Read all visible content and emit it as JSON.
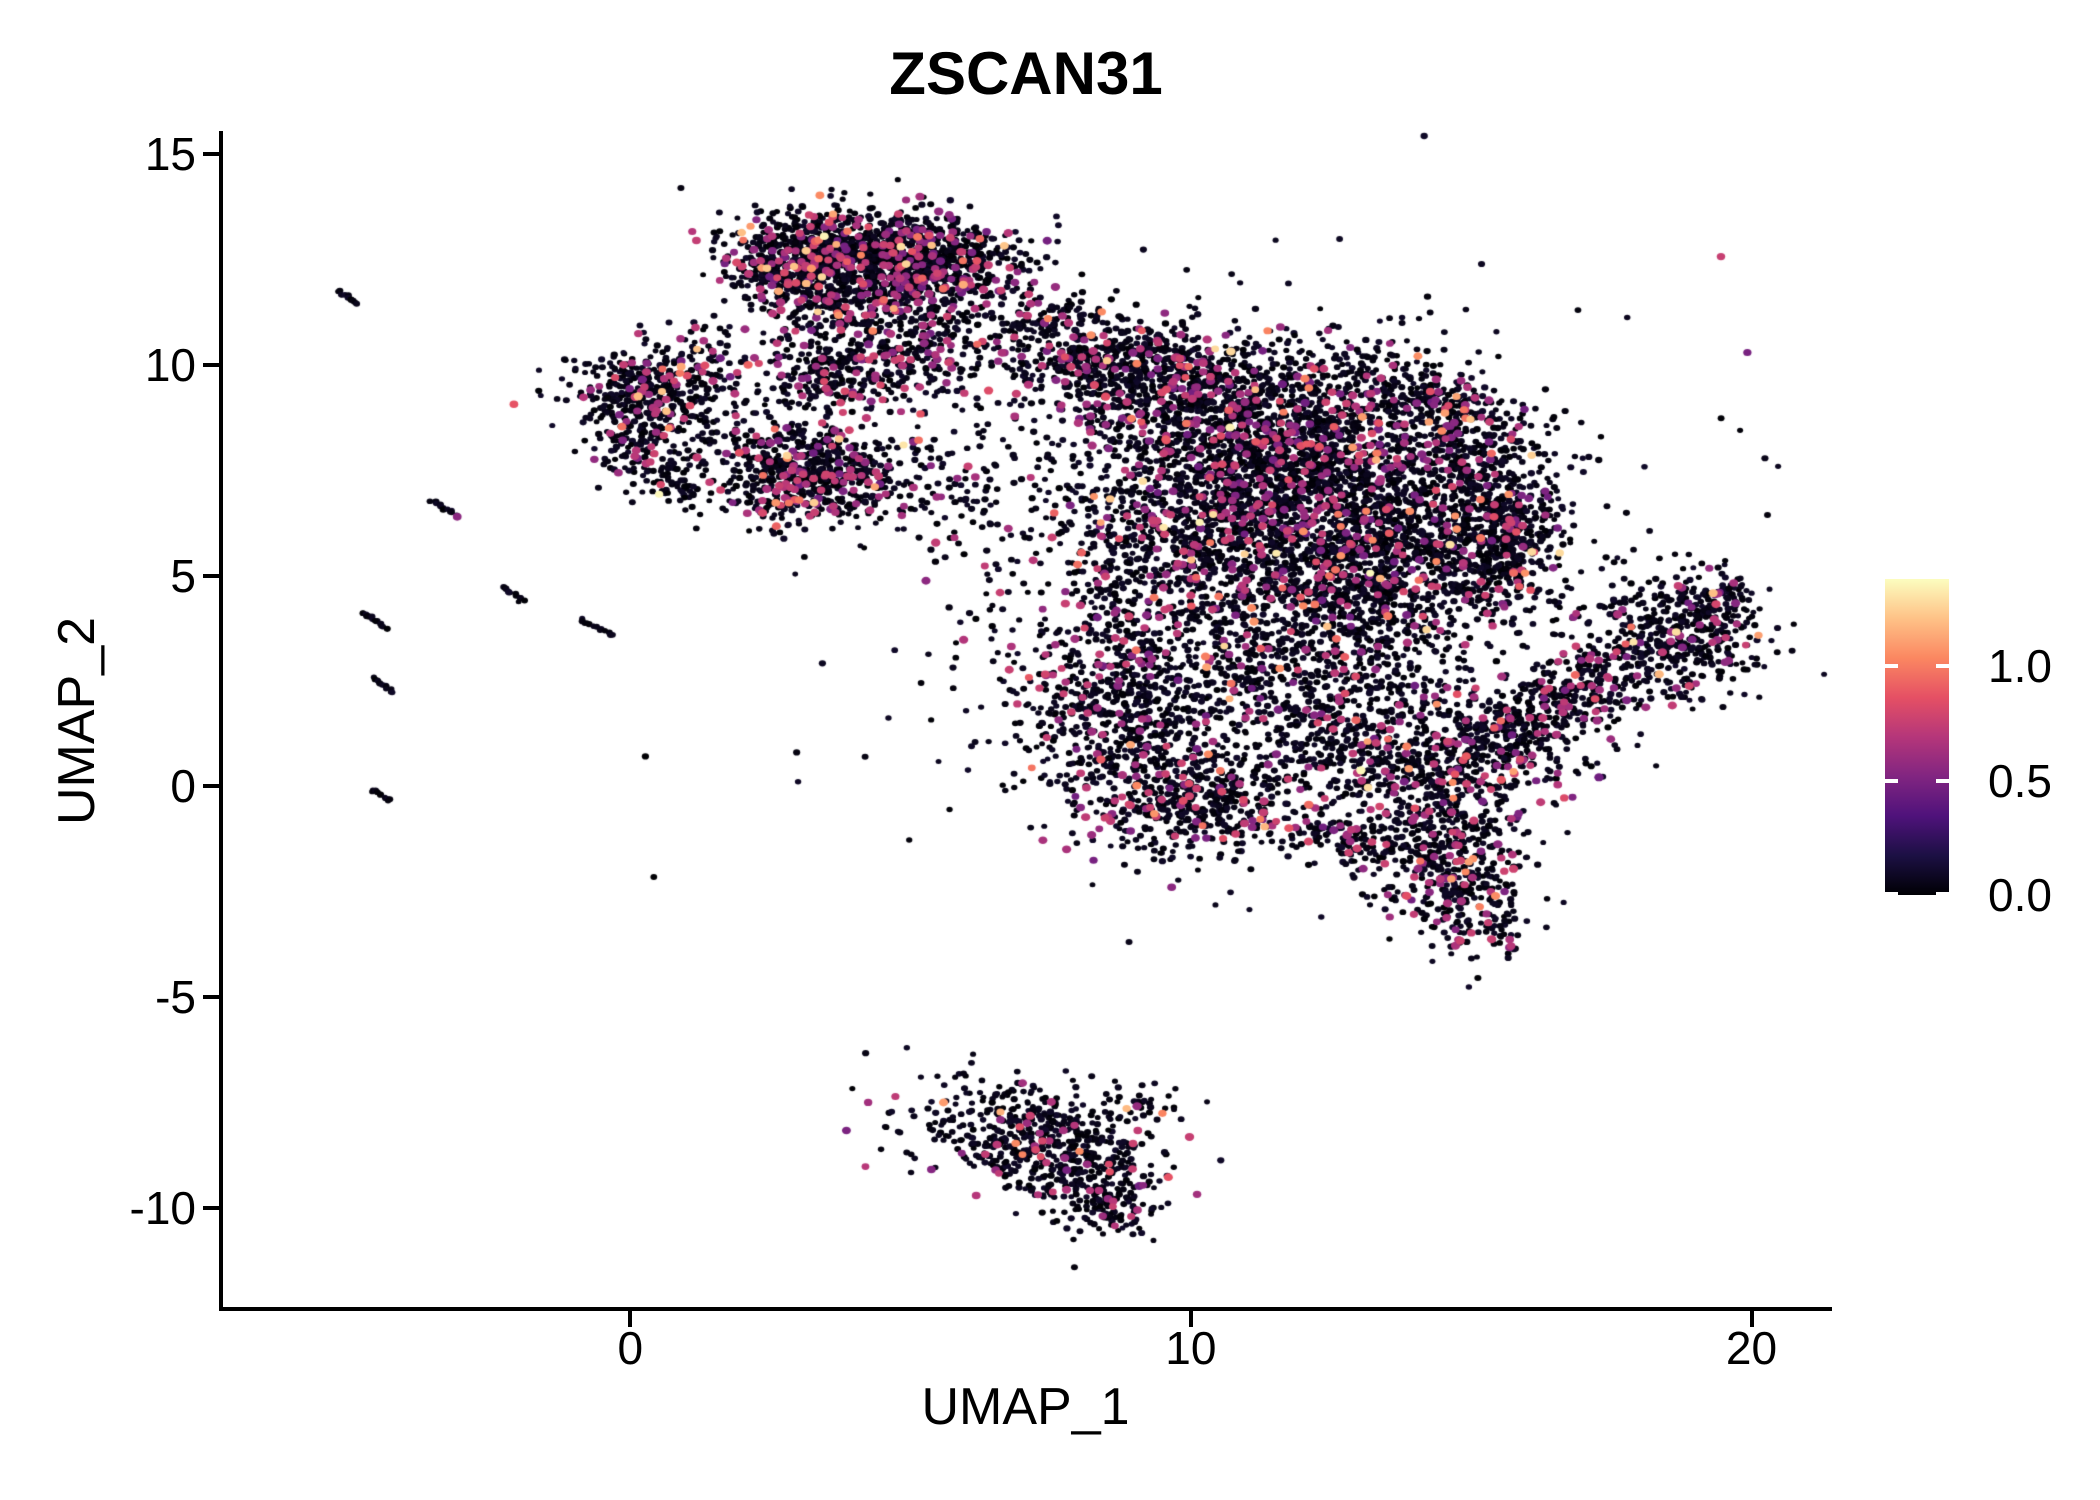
{
  "chart_data": {
    "type": "scatter",
    "title": "ZSCAN31",
    "xlabel": "UMAP_1",
    "ylabel": "UMAP_2",
    "x_range": [
      -7.3,
      21.4
    ],
    "y_range": [
      -12.4,
      15.5
    ],
    "grid": false,
    "x_ticks": [
      {
        "v": 0,
        "label": "0"
      },
      {
        "v": 10,
        "label": "10"
      },
      {
        "v": 20,
        "label": "20"
      }
    ],
    "y_ticks": [
      {
        "v": 15,
        "label": "15"
      },
      {
        "v": 10,
        "label": "10"
      },
      {
        "v": 5,
        "label": "5"
      },
      {
        "v": 0,
        "label": "0"
      },
      {
        "v": -5,
        "label": "-5"
      },
      {
        "v": -10,
        "label": "-10"
      }
    ],
    "legend_position": "right",
    "colorbar": {
      "min": 0,
      "max": 1.38,
      "ticks": [
        {
          "v": 1.0,
          "label": "1.0"
        },
        {
          "v": 0.5,
          "label": "0.5"
        },
        {
          "v": 0.0,
          "label": "0.0"
        }
      ]
    },
    "colormap": {
      "name": "magma",
      "stops": [
        [
          0,
          "#000004"
        ],
        [
          0.125,
          "#1c1044"
        ],
        [
          0.25,
          "#4f127b"
        ],
        [
          0.375,
          "#812581"
        ],
        [
          0.5,
          "#b5367a"
        ],
        [
          0.625,
          "#e55064"
        ],
        [
          0.75,
          "#fb8761"
        ],
        [
          0.875,
          "#fec287"
        ],
        [
          1,
          "#fcfdbf"
        ]
      ]
    },
    "point_style": {
      "r_zero": [
        2.9,
        3.7
      ],
      "r_expr": [
        3.9,
        4.7
      ],
      "aspect": 0.86
    },
    "value_mix": {
      "zero_max": 0.1,
      "levels": [
        [
          0.62,
          0.45,
          0.78
        ],
        [
          0.24,
          0.55,
          0.85
        ],
        [
          0.1,
          0.85,
          1.1
        ],
        [
          0.03,
          1.1,
          1.28
        ],
        [
          0.01,
          1.28,
          1.38
        ]
      ]
    },
    "seed": 42,
    "clusters": [
      {
        "name": "top-cluster",
        "colored_frac": 0.16,
        "blobs": [
          [
            4.0,
            12.75,
            1.1,
            0.5,
            -8,
            750
          ],
          [
            2.95,
            12.15,
            0.6,
            0.5,
            0,
            330
          ],
          [
            5.4,
            12.5,
            0.85,
            0.55,
            -5,
            430
          ],
          [
            4.5,
            11.5,
            1.0,
            0.5,
            0,
            300
          ],
          [
            4.4,
            10.1,
            1.0,
            0.65,
            0,
            380
          ],
          [
            3.4,
            9.6,
            0.5,
            0.4,
            0,
            90
          ],
          [
            6.8,
            10.9,
            0.9,
            0.45,
            -20,
            90
          ],
          [
            1.5,
            10.3,
            0.6,
            0.45,
            0,
            55
          ]
        ]
      },
      {
        "name": "left-blob",
        "colored_frac": 0.11,
        "blobs": [
          [
            0.35,
            9.45,
            0.8,
            0.5,
            0,
            330
          ],
          [
            0.15,
            8.35,
            0.45,
            0.5,
            0,
            160
          ],
          [
            0.9,
            7.3,
            0.4,
            0.35,
            0,
            80
          ],
          [
            1.95,
            8.5,
            0.45,
            0.3,
            0,
            40
          ]
        ]
      },
      {
        "name": "left-triangle",
        "colored_frac": 0.15,
        "blobs": [
          [
            3.35,
            7.5,
            0.9,
            0.6,
            -12,
            560
          ],
          [
            2.7,
            6.9,
            0.4,
            0.4,
            0,
            90
          ]
        ]
      },
      {
        "name": "mid-sparse",
        "colored_frac": 0.1,
        "blobs": [
          [
            5.8,
            7.2,
            0.75,
            0.6,
            0,
            55
          ]
        ]
      },
      {
        "name": "main-mass",
        "colored_frac": 0.115,
        "blobs": [
          [
            9.6,
            9.5,
            1.35,
            0.8,
            -6,
            800
          ],
          [
            8.3,
            10.2,
            0.6,
            0.45,
            0,
            150
          ],
          [
            7.7,
            10.9,
            0.5,
            0.4,
            0,
            60
          ],
          [
            12.0,
            8.1,
            1.5,
            1.15,
            0,
            1200
          ],
          [
            14.2,
            9.2,
            0.75,
            0.35,
            -33,
            220
          ],
          [
            15.3,
            6.7,
            0.65,
            1.3,
            12,
            520
          ],
          [
            15.6,
            5.6,
            0.5,
            0.7,
            0,
            200
          ],
          [
            10.6,
            5.9,
            1.7,
            1.35,
            0,
            1500
          ],
          [
            13.3,
            5.3,
            1.15,
            1.3,
            0,
            950
          ],
          [
            8.7,
            1.8,
            0.95,
            1.2,
            0,
            600
          ],
          [
            10.0,
            -0.3,
            0.9,
            0.7,
            -10,
            420
          ],
          [
            11.4,
            2.7,
            1.5,
            1.1,
            0,
            430
          ],
          [
            12.3,
            0.9,
            1.2,
            0.8,
            0,
            160
          ],
          [
            13.8,
            0.7,
            1.25,
            0.95,
            0,
            480
          ],
          [
            12.5,
            -1.2,
            1.1,
            0.25,
            -12,
            130
          ],
          [
            11.3,
            5.6,
            3.3,
            3.1,
            0,
            550
          ]
        ]
      },
      {
        "name": "hook",
        "colored_frac": 0.13,
        "blobs": [
          [
            14.55,
            -1.7,
            0.8,
            0.85,
            0,
            400
          ],
          [
            15.1,
            -3.1,
            0.4,
            0.55,
            25,
            100
          ]
        ]
      },
      {
        "name": "right-arm",
        "colored_frac": 0.1,
        "blobs": [
          [
            16.3,
            1.85,
            1.05,
            0.45,
            40,
            420
          ],
          [
            18.55,
            3.55,
            0.85,
            0.8,
            38,
            470
          ],
          [
            19.3,
            4.3,
            0.35,
            0.35,
            0,
            60
          ],
          [
            15.6,
            0.6,
            0.9,
            0.6,
            25,
            110
          ]
        ]
      },
      {
        "name": "bottom-triangle",
        "colored_frac": 0.07,
        "blobs": [
          [
            7.3,
            -8.2,
            1.15,
            0.6,
            -6,
            430
          ],
          [
            7.9,
            -9.2,
            0.75,
            0.5,
            -18,
            220
          ],
          [
            8.55,
            -9.95,
            0.4,
            0.45,
            0,
            90
          ],
          [
            9.25,
            -7.5,
            0.3,
            0.12,
            -25,
            14
          ]
        ]
      }
    ],
    "streaks": [
      {
        "c": [
          -5.05,
          11.6
        ],
        "len": 0.45,
        "angle": -42,
        "n": 12
      },
      {
        "c": [
          -3.3,
          6.6
        ],
        "len": 0.55,
        "angle": -42,
        "n": 13,
        "end_value": 0.55
      },
      {
        "c": [
          -2.08,
          4.55
        ],
        "len": 0.5,
        "angle": -42,
        "n": 12
      },
      {
        "c": [
          -4.58,
          3.95
        ],
        "len": 0.55,
        "angle": -42,
        "n": 16
      },
      {
        "c": [
          -0.6,
          3.78
        ],
        "len": 0.7,
        "angle": -37,
        "n": 14
      },
      {
        "c": [
          -4.4,
          2.4
        ],
        "len": 0.5,
        "angle": -42,
        "n": 12
      },
      {
        "c": [
          -4.45,
          -0.2
        ],
        "len": 0.45,
        "angle": -42,
        "n": 11
      }
    ],
    "lone_dots": [
      [
        0.42,
        -2.15
      ],
      [
        0.27,
        0.71
      ]
    ]
  }
}
